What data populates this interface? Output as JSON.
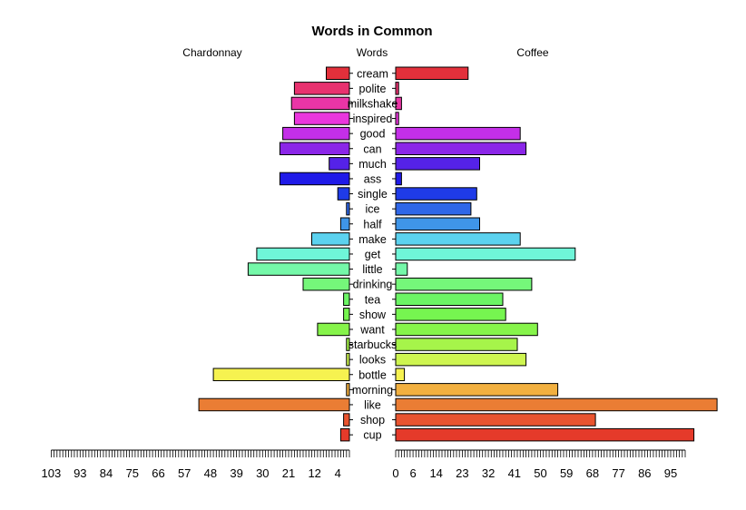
{
  "chart_data": {
    "type": "bar",
    "orientation": "horizontal-pyramid",
    "title": "Words in Common",
    "left_label": "Chardonnay",
    "center_label": "Words",
    "right_label": "Coffee",
    "categories": [
      "cream",
      "polite",
      "milkshake",
      "inspired",
      "good",
      "can",
      "much",
      "ass",
      "single",
      "ice",
      "half",
      "make",
      "get",
      "little",
      "drinking",
      "tea",
      "show",
      "want",
      "starbucks",
      "looks",
      "bottle",
      "morning",
      "like",
      "shop",
      "cup"
    ],
    "series": [
      {
        "name": "Chardonnay",
        "values": [
          8,
          19,
          20,
          19,
          23,
          24,
          7,
          24,
          4,
          1,
          3,
          13,
          32,
          35,
          16,
          2,
          2,
          11,
          1,
          1,
          47,
          1,
          52,
          2,
          3
        ],
        "ticks": [
          103,
          93,
          84,
          75,
          66,
          57,
          48,
          39,
          30,
          21,
          12,
          4
        ]
      },
      {
        "name": "Coffee",
        "values": [
          25,
          1,
          2,
          1,
          43,
          45,
          29,
          2,
          28,
          26,
          29,
          43,
          62,
          4,
          47,
          37,
          38,
          49,
          42,
          45,
          3,
          56,
          111,
          69,
          103
        ],
        "ticks": [
          0,
          6,
          14,
          23,
          32,
          41,
          50,
          59,
          68,
          77,
          86,
          95
        ]
      }
    ],
    "colors": [
      "#e3303b",
      "#e8326f",
      "#ea35a6",
      "#ea36dd",
      "#c42fe8",
      "#8b26e8",
      "#5522e8",
      "#1f1ae8",
      "#1f3be8",
      "#2f67e8",
      "#3f95e8",
      "#5cd2ef",
      "#6ff5d8",
      "#75f8a9",
      "#75f77a",
      "#6cf565",
      "#76f550",
      "#86f44a",
      "#a6f44a",
      "#cef550",
      "#f6f250",
      "#f2b040",
      "#ea7d34",
      "#e9542f",
      "#e53a2a"
    ]
  }
}
